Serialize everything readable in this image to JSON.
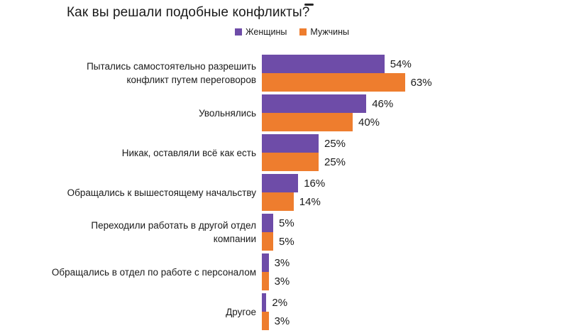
{
  "chart_data": {
    "type": "bar",
    "orientation": "horizontal",
    "title": "Как вы решали подобные конфликты?",
    "categories": [
      [
        "Пытались самостоятельно разрешить",
        "конфликт путем переговоров"
      ],
      [
        "Увольнялись"
      ],
      [
        "Никак, оставляли всё как есть"
      ],
      [
        "Обращались к вышестоящему начальству"
      ],
      [
        "Переходили работать в другой отдел",
        "компании"
      ],
      [
        "Обращались в отдел по работе с персоналом"
      ],
      [
        "Другое"
      ]
    ],
    "series": [
      {
        "name": "Женщины",
        "color": "#6E4CA8",
        "values": [
          54,
          46,
          25,
          16,
          5,
          3,
          2
        ]
      },
      {
        "name": "Мужчины",
        "color": "#EE7D2E",
        "values": [
          63,
          40,
          25,
          14,
          5,
          3,
          3
        ]
      }
    ],
    "value_suffix": "%",
    "data_labels": true,
    "legend_position": "top-center",
    "grid": false,
    "axes_visible": false,
    "xlim": [
      0,
      63
    ],
    "text_color": "#1a1a1a",
    "background": "#ffffff"
  }
}
